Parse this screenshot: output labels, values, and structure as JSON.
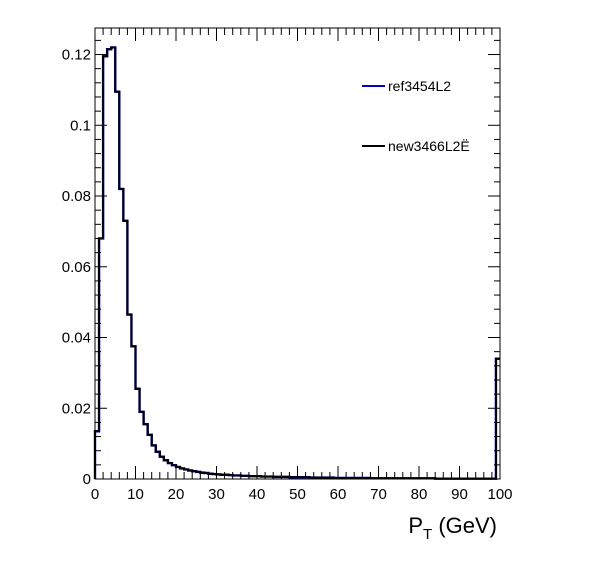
{
  "chart_data": {
    "type": "line",
    "style": "step-histogram",
    "xlabel_main": "P",
    "xlabel_sub": "T",
    "xlabel_rest": " (GeV)",
    "xlim": [
      0,
      100
    ],
    "ylim": [
      0,
      0.1275
    ],
    "x_ticks": [
      "0",
      "10",
      "20",
      "30",
      "40",
      "50",
      "60",
      "70",
      "80",
      "90",
      "100"
    ],
    "y_ticks": [
      "0",
      "0.02",
      "0.04",
      "0.06",
      "0.08",
      "0.1",
      "0.12"
    ],
    "bin_width": 1,
    "legend_position": "top-right",
    "series": [
      {
        "name": "ref3454L2",
        "color": "#0000cc",
        "values": [
          0.0135,
          0.068,
          0.1195,
          0.1215,
          0.122,
          0.1095,
          0.082,
          0.073,
          0.0465,
          0.0375,
          0.0255,
          0.019,
          0.0155,
          0.0125,
          0.0095,
          0.0077,
          0.0063,
          0.0053,
          0.0045,
          0.0039,
          0.0034,
          0.003,
          0.0027,
          0.0024,
          0.0022,
          0.002,
          0.0018,
          0.0017,
          0.0015,
          0.0014,
          0.0013,
          0.0012,
          0.0012,
          0.0011,
          0.001,
          0.001,
          0.0009,
          0.0009,
          0.0008,
          0.0008,
          0.0008,
          0.0007,
          0.0007,
          0.0007,
          0.0006,
          0.0006,
          0.0006,
          0.0006,
          0.0005,
          0.0005,
          0.0005,
          0.0005,
          0.0005,
          0.0004,
          0.0004,
          0.0004,
          0.0004,
          0.0004,
          0.0004,
          0.0003,
          0.0003,
          0.0003,
          0.0003,
          0.0003,
          0.0003,
          0.0003,
          0.0003,
          0.0003,
          0.0002,
          0.0002,
          0.0002,
          0.0002,
          0.0002,
          0.0002,
          0.0002,
          0.0002,
          0.0002,
          0.0002,
          0.0002,
          0.0002,
          0.0002,
          0.0002,
          0.0002,
          0.0002,
          0.0001,
          0.0001,
          0.0001,
          0.0001,
          0.0001,
          0.0001,
          0.0001,
          0.0001,
          0.0001,
          0.0001,
          0.0001,
          0.0001,
          0.0001,
          0.0001,
          0.0001,
          0.034
        ]
      },
      {
        "name": "new3466L2Ë",
        "color": "#000000",
        "values": [
          0.0135,
          0.068,
          0.1195,
          0.1215,
          0.122,
          0.1095,
          0.082,
          0.073,
          0.0465,
          0.0375,
          0.0255,
          0.019,
          0.0155,
          0.0125,
          0.0095,
          0.0077,
          0.0063,
          0.0053,
          0.0045,
          0.0039,
          0.0034,
          0.003,
          0.0027,
          0.0024,
          0.0022,
          0.002,
          0.0018,
          0.0017,
          0.0015,
          0.0014,
          0.0013,
          0.0012,
          0.0012,
          0.0011,
          0.001,
          0.001,
          0.0009,
          0.0009,
          0.0008,
          0.0008,
          0.0008,
          0.0007,
          0.0007,
          0.0007,
          0.0006,
          0.0006,
          0.0006,
          0.0006,
          0.0005,
          0.0005,
          0.0005,
          0.0005,
          0.0005,
          0.0004,
          0.0004,
          0.0004,
          0.0004,
          0.0004,
          0.0004,
          0.0003,
          0.0003,
          0.0003,
          0.0003,
          0.0003,
          0.0003,
          0.0003,
          0.0003,
          0.0003,
          0.0002,
          0.0002,
          0.0002,
          0.0002,
          0.0002,
          0.0002,
          0.0002,
          0.0002,
          0.0002,
          0.0002,
          0.0002,
          0.0002,
          0.0002,
          0.0002,
          0.0002,
          0.0002,
          0.0001,
          0.0001,
          0.0001,
          0.0001,
          0.0001,
          0.0001,
          0.0001,
          0.0001,
          0.0001,
          0.0001,
          0.0001,
          0.0001,
          0.0001,
          0.0001,
          0.0001,
          0.034
        ]
      }
    ]
  }
}
